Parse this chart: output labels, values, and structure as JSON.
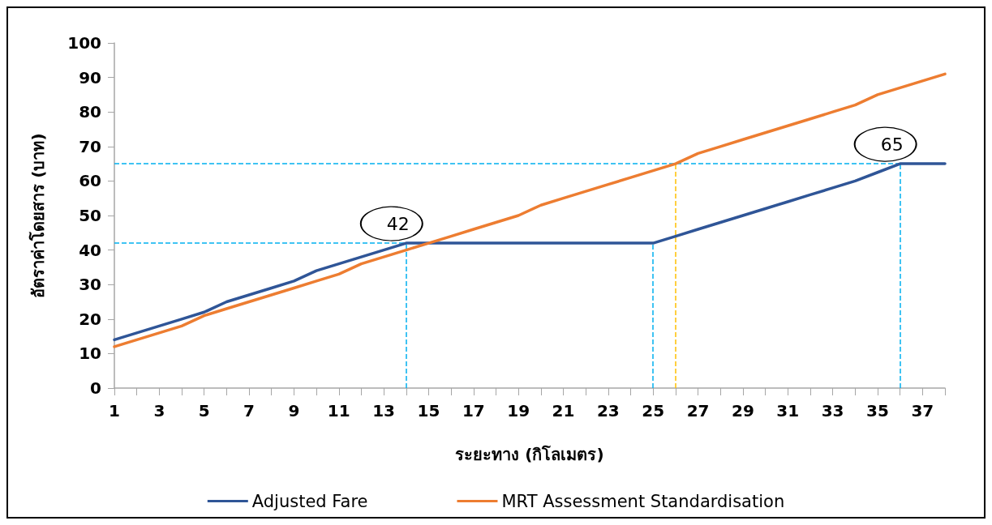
{
  "chart_data": {
    "type": "line",
    "xlabel": "ระยะทาง (กิโลเมตร)",
    "ylabel": "อัตราค่าโดยสาร (บาท)",
    "x": [
      1,
      2,
      3,
      4,
      5,
      6,
      7,
      8,
      9,
      10,
      11,
      12,
      13,
      14,
      15,
      16,
      17,
      18,
      19,
      20,
      21,
      22,
      23,
      24,
      25,
      26,
      27,
      28,
      29,
      30,
      31,
      32,
      33,
      34,
      35,
      36,
      37,
      38
    ],
    "series": [
      {
        "name": "Adjusted Fare",
        "color": "#2f5597",
        "values": [
          14,
          16,
          18,
          20,
          22,
          25,
          27,
          29,
          31,
          34,
          36,
          38,
          40,
          42,
          42,
          42,
          42,
          42,
          42,
          42,
          42,
          42,
          42,
          42,
          42,
          44,
          46,
          48,
          50,
          52,
          54,
          56,
          58,
          60,
          62.5,
          65,
          65,
          65
        ]
      },
      {
        "name": "MRT Assessment Standardisation",
        "color": "#ed7d31",
        "values": [
          12,
          14,
          16,
          18,
          21,
          23,
          25,
          27,
          29,
          31,
          33,
          36,
          38,
          40,
          42,
          44,
          46,
          48,
          50,
          53,
          55,
          57,
          59,
          61,
          63,
          65,
          68,
          70,
          72,
          74,
          76,
          78,
          80,
          82,
          85,
          87,
          89,
          91
        ]
      }
    ],
    "xlim": [
      1,
      38
    ],
    "xticks": [
      1,
      {
        "value": 2,
        "label": null
      },
      3,
      {
        "value": 4,
        "label": null
      },
      5,
      {
        "value": 6,
        "label": null
      },
      7,
      {
        "value": 8,
        "label": null
      },
      9,
      {
        "value": 10,
        "label": null
      },
      11,
      {
        "value": 12,
        "label": null
      },
      13,
      {
        "value": 14,
        "label": null
      },
      15,
      {
        "value": 16,
        "label": null
      },
      17,
      {
        "value": 18,
        "label": null
      },
      19,
      {
        "value": 20,
        "label": null
      },
      21,
      {
        "value": 22,
        "label": null
      },
      23,
      {
        "value": 24,
        "label": null
      },
      25,
      {
        "value": 26,
        "label": null
      },
      27,
      {
        "value": 28,
        "label": null
      },
      29,
      {
        "value": 30,
        "label": null
      },
      31,
      {
        "value": 32,
        "label": null
      },
      33,
      {
        "value": 34,
        "label": null
      },
      35,
      {
        "value": 36,
        "label": null
      },
      37,
      {
        "value": 38,
        "label": null
      }
    ],
    "ylim": [
      0,
      100
    ],
    "yticks": [
      0,
      10,
      20,
      30,
      40,
      50,
      60,
      70,
      80,
      90,
      100
    ],
    "grid": false,
    "legend": "bottom",
    "marker": "none",
    "line_style": "solid",
    "ref_lines": [
      {
        "axis": "y",
        "value": 42,
        "color": "#00b0f0",
        "line_style": "dashed"
      },
      {
        "axis": "y",
        "value": 65,
        "color": "#00b0f0",
        "line_style": "dashed"
      },
      {
        "axis": "x",
        "value": 14,
        "color": "#00b0f0",
        "line_style": "dashed"
      },
      {
        "axis": "x",
        "value": 25,
        "color": "#00b0f0",
        "line_style": "dashed"
      },
      {
        "axis": "x",
        "value": 36,
        "color": "#00b0f0",
        "line_style": "dashed"
      },
      {
        "axis": "x",
        "value": 26,
        "color": "#ffc000",
        "line_style": "dashed"
      }
    ],
    "annotations": [
      {
        "text": "42",
        "x": 14,
        "y": 42
      },
      {
        "text": "65",
        "x": 36,
        "y": 65
      }
    ]
  }
}
